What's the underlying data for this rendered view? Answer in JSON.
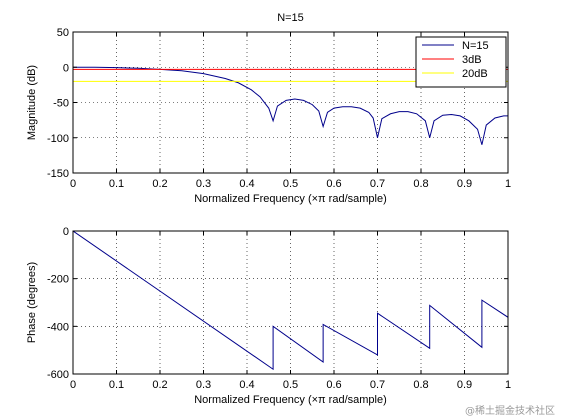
{
  "chart_data": [
    {
      "type": "line",
      "title": "N=15",
      "xlabel": "Normalized Frequency  (×π rad/sample)",
      "ylabel": "Magnitude (dB)",
      "xlim": [
        0,
        1
      ],
      "ylim": [
        -150,
        50
      ],
      "xticks": [
        "0",
        "0.1",
        "0.2",
        "0.3",
        "0.4",
        "0.5",
        "0.6",
        "0.7",
        "0.8",
        "0.9",
        "1"
      ],
      "yticks": [
        "50",
        "0",
        "-50",
        "-100",
        "-150"
      ],
      "grid": true,
      "legend": "top-right",
      "series": [
        {
          "name": "N=15",
          "color": "#00008b",
          "x": [
            0,
            0.05,
            0.1,
            0.15,
            0.2,
            0.25,
            0.3,
            0.35,
            0.38,
            0.41,
            0.43,
            0.45,
            0.46,
            0.47,
            0.49,
            0.51,
            0.53,
            0.55,
            0.565,
            0.575,
            0.585,
            0.6,
            0.62,
            0.64,
            0.66,
            0.68,
            0.69,
            0.7,
            0.71,
            0.73,
            0.75,
            0.77,
            0.79,
            0.81,
            0.82,
            0.83,
            0.85,
            0.87,
            0.89,
            0.91,
            0.93,
            0.94,
            0.95,
            0.97,
            0.99,
            1.0
          ],
          "y": [
            0,
            0,
            -0.5,
            -1.5,
            -3,
            -5,
            -9,
            -16,
            -22,
            -32,
            -42,
            -58,
            -76,
            -55,
            -47,
            -45,
            -47,
            -53,
            -62,
            -84,
            -64,
            -58,
            -56,
            -56,
            -58,
            -64,
            -72,
            -100,
            -73,
            -66,
            -63,
            -63,
            -66,
            -76,
            -100,
            -76,
            -68,
            -67,
            -69,
            -76,
            -88,
            -110,
            -82,
            -72,
            -69,
            -69
          ]
        },
        {
          "name": "3dB",
          "color": "#ff0000",
          "x": [
            0,
            1
          ],
          "y": [
            -3,
            -3
          ]
        },
        {
          "name": "20dB",
          "color": "#ffff00",
          "x": [
            0,
            1
          ],
          "y": [
            -20,
            -20
          ]
        }
      ]
    },
    {
      "type": "line",
      "title": "",
      "xlabel": "Normalized Frequency  (×π rad/sample)",
      "ylabel": "Phase (degrees)",
      "xlim": [
        0,
        1
      ],
      "ylim": [
        -600,
        0
      ],
      "xticks": [
        "0",
        "0.1",
        "0.2",
        "0.3",
        "0.4",
        "0.5",
        "0.6",
        "0.7",
        "0.8",
        "0.9",
        "1"
      ],
      "yticks": [
        "0",
        "-200",
        "-400",
        "-600"
      ],
      "grid": true,
      "series": [
        {
          "color": "#00008b",
          "x": [
            0,
            0.46,
            0.46,
            0.575,
            0.575,
            0.7,
            0.7,
            0.82,
            0.82,
            0.94,
            0.94,
            1.0
          ],
          "y": [
            0,
            -580,
            -400,
            -550,
            -392,
            -520,
            -345,
            -492,
            -312,
            -488,
            -290,
            -362
          ]
        }
      ]
    }
  ],
  "watermark": "@稀土掘金技术社区"
}
